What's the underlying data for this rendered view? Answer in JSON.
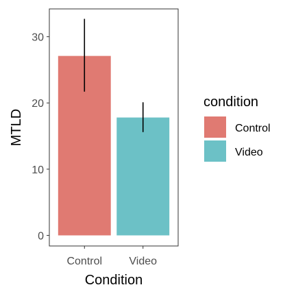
{
  "chart_data": {
    "type": "bar",
    "categories": [
      "Control",
      "Video"
    ],
    "values": [
      27.1,
      17.8
    ],
    "error_bars": [
      {
        "low": 21.7,
        "high": 32.7
      },
      {
        "low": 15.6,
        "high": 20.1
      }
    ],
    "colors": [
      "#E07A72",
      "#6CC1C6"
    ],
    "xlabel": "Condition",
    "ylabel": "MTLD",
    "ylim": [
      -1.6,
      34.2
    ],
    "yticks": [
      0,
      10,
      20,
      30
    ],
    "grid": false,
    "legend": {
      "title": "condition",
      "position": "right",
      "items": [
        "Control",
        "Video"
      ]
    }
  }
}
